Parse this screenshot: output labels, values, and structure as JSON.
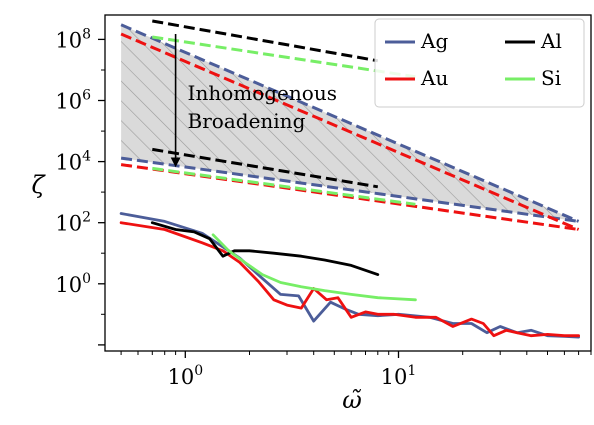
{
  "chart_data": {
    "type": "line",
    "xlabel": "ω̃",
    "ylabel": "ζ",
    "x_scale": "log",
    "y_scale": "log",
    "xlim": [
      0.42,
      80
    ],
    "ylim": [
      0.0063,
      630000000
    ],
    "grid": false,
    "legend_position": "top-right",
    "legend_columns": 2,
    "x_ticks": [
      {
        "base": "10",
        "exp": "0",
        "value": 1
      },
      {
        "base": "10",
        "exp": "1",
        "value": 10
      }
    ],
    "y_ticks": [
      {
        "base": "10",
        "exp": "0",
        "value": 1
      },
      {
        "base": "10",
        "exp": "2",
        "value": 100
      },
      {
        "base": "10",
        "exp": "4",
        "value": 10000
      },
      {
        "base": "10",
        "exp": "6",
        "value": 1000000
      },
      {
        "base": "10",
        "exp": "8",
        "value": 100000000
      }
    ],
    "annotation": {
      "lines": [
        "Inhomogenous",
        "Broadening"
      ],
      "arrow_from": [
        0.9,
        150000000
      ],
      "arrow_to": [
        0.9,
        9500
      ]
    },
    "shaded_band": {
      "x": [
        0.5,
        70
      ],
      "upper": [
        300000000,
        110
      ],
      "lower": [
        13000,
        110
      ]
    },
    "colors": {
      "Ag": "#4c5d99",
      "Au": "#ee1111",
      "Al": "#000000",
      "Si": "#77ee66"
    },
    "series": [
      {
        "name": "Ag",
        "color": "#4c5d99",
        "x": [
          0.5,
          0.8,
          1.2,
          1.8,
          2.3,
          2.8,
          3.4,
          4.0,
          4.8,
          5.6,
          6.5,
          8.0,
          10.0,
          14.0,
          18.0,
          22.0,
          26.0,
          30.0,
          36.0,
          42.0,
          50.0,
          60.0,
          70.0
        ],
        "y": [
          200,
          110,
          45,
          7,
          1.5,
          0.45,
          0.4,
          0.06,
          0.25,
          0.15,
          0.1,
          0.09,
          0.1,
          0.08,
          0.05,
          0.05,
          0.025,
          0.04,
          0.025,
          0.03,
          0.02,
          0.019,
          0.018
        ],
        "upper_limit": {
          "x": [
            0.5,
            70
          ],
          "y": [
            300000000,
            110
          ]
        },
        "lower_limit": {
          "x": [
            0.5,
            70
          ],
          "y": [
            13000,
            110
          ]
        }
      },
      {
        "name": "Au",
        "color": "#ee1111",
        "x": [
          0.5,
          0.8,
          1.2,
          1.5,
          1.8,
          2.2,
          2.6,
          3.0,
          3.5,
          4.0,
          4.6,
          5.2,
          6.0,
          7.0,
          8.0,
          9.5,
          12.0,
          15.0,
          18.0,
          22.0,
          25.0,
          28.0,
          32.0,
          36.0,
          42.0,
          50.0,
          60.0,
          70.0
        ],
        "y": [
          100,
          60,
          22,
          12,
          5,
          1.2,
          0.3,
          0.2,
          0.16,
          0.7,
          0.3,
          0.35,
          0.08,
          0.12,
          0.1,
          0.1,
          0.08,
          0.08,
          0.04,
          0.07,
          0.05,
          0.02,
          0.03,
          0.025,
          0.02,
          0.022,
          0.02,
          0.02
        ],
        "upper_limit": {
          "x": [
            0.5,
            70
          ],
          "y": [
            150000000,
            60
          ]
        },
        "lower_limit": {
          "x": [
            0.5,
            70
          ],
          "y": [
            8000,
            60
          ]
        }
      },
      {
        "name": "Al",
        "color": "#000000",
        "x": [
          0.7,
          0.9,
          1.1,
          1.3,
          1.5,
          1.7,
          2.0,
          2.6,
          3.5,
          4.5,
          6.0,
          8.0
        ],
        "y": [
          100,
          60,
          50,
          30,
          8,
          12,
          12,
          10,
          8,
          6,
          4,
          2
        ],
        "upper_limit": {
          "x": [
            0.7,
            8.0
          ],
          "y": [
            400000000,
            20000000
          ]
        },
        "lower_limit": {
          "x": [
            0.7,
            8.0
          ],
          "y": [
            25000,
            1500
          ]
        }
      },
      {
        "name": "Si",
        "color": "#77ee66",
        "x": [
          1.35,
          1.6,
          1.9,
          2.3,
          2.8,
          3.5,
          4.5,
          6.0,
          8.0,
          12.0
        ],
        "y": [
          40,
          12,
          5,
          2,
          1.1,
          0.8,
          0.6,
          0.45,
          0.35,
          0.3
        ],
        "upper_limit": {
          "x": [
            0.7,
            12.0
          ],
          "y": [
            120000000,
            6000000
          ]
        },
        "lower_limit": {
          "x": [
            0.7,
            12.0
          ],
          "y": [
            6000,
            400
          ]
        }
      }
    ]
  }
}
